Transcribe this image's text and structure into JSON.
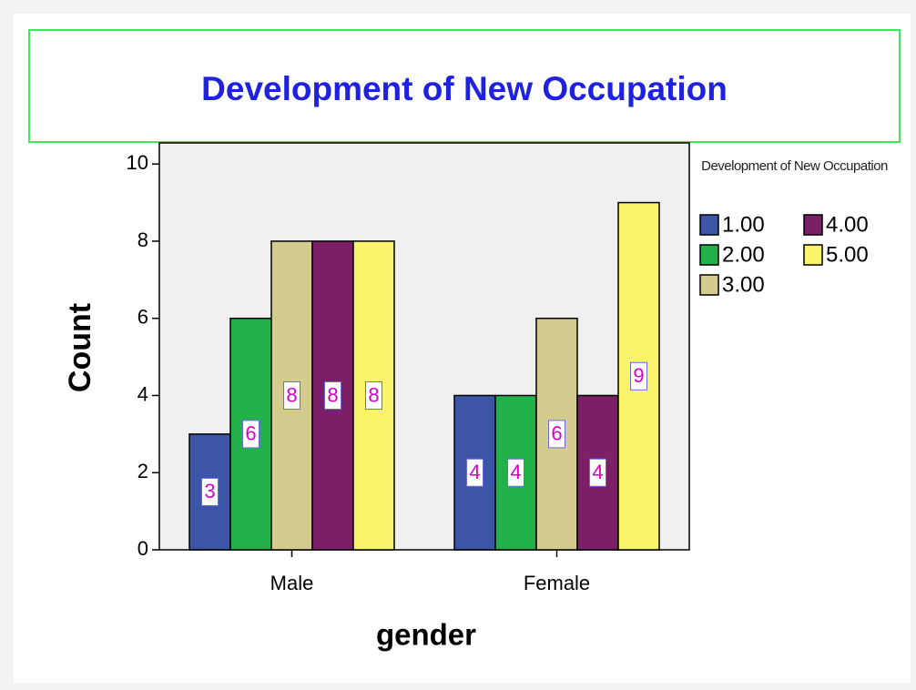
{
  "chart_data": {
    "type": "bar",
    "title": "Development of New Occupation",
    "x_label": "gender",
    "y_label": "Count",
    "categories": [
      "Male",
      "Female"
    ],
    "legend_title": "Development of New Occupation",
    "series": [
      {
        "name": "1.00",
        "color": "#3d55a6",
        "values": [
          3,
          4
        ]
      },
      {
        "name": "2.00",
        "color": "#22b04b",
        "values": [
          6,
          4
        ]
      },
      {
        "name": "3.00",
        "color": "#d4cc8f",
        "values": [
          8,
          6
        ]
      },
      {
        "name": "4.00",
        "color": "#7b2066",
        "values": [
          8,
          4
        ]
      },
      {
        "name": "5.00",
        "color": "#f9f46b",
        "values": [
          8,
          9
        ]
      }
    ],
    "ylim": [
      0,
      10.5
    ],
    "yticks": [
      0,
      2,
      4,
      6,
      8,
      10
    ],
    "grid": false
  }
}
